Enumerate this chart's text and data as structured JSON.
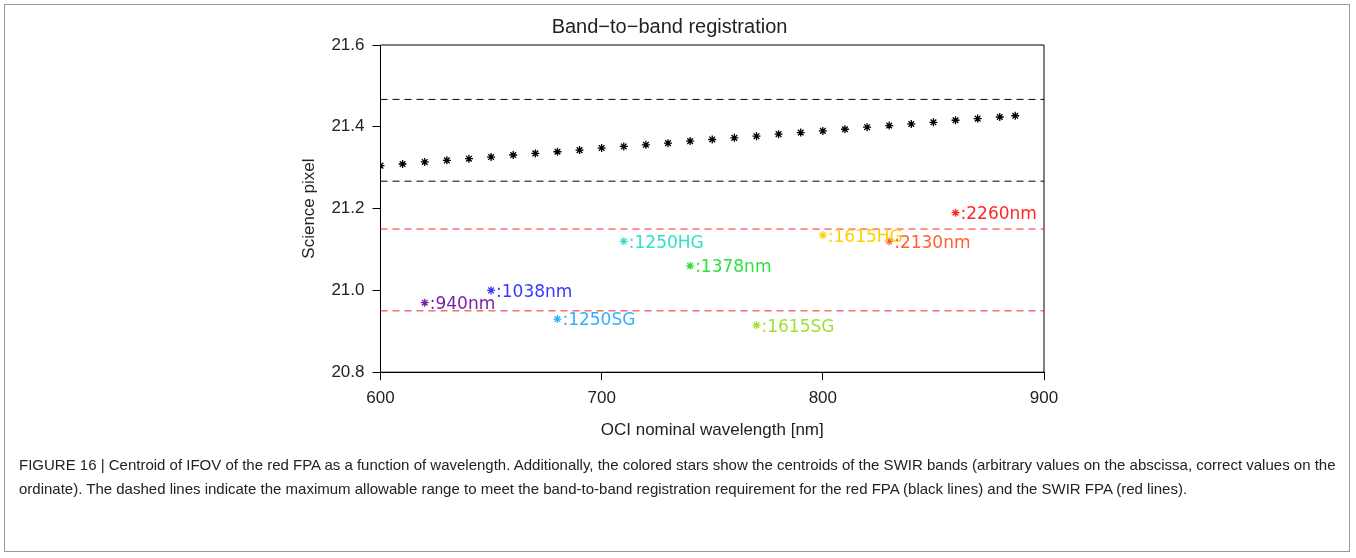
{
  "chart_data": {
    "type": "scatter",
    "title": "Band−to−band registration",
    "xlabel": "OCI nominal wavelength [nm]",
    "ylabel": "Science pixel",
    "xlim": [
      600,
      900
    ],
    "xticks": [
      600,
      700,
      800,
      900
    ],
    "ylim": [
      20.8,
      21.6
    ],
    "yticks": [
      20.8,
      {
        "value": 21,
        "label": "21.0"
      },
      21.2,
      21.4,
      21.6
    ],
    "grid": false,
    "legend": false,
    "marker": "cross",
    "series": [
      {
        "color": "#000000",
        "x": [
          600,
          610,
          620,
          630,
          640,
          650,
          660,
          670,
          680,
          690,
          700,
          710,
          720,
          730,
          740,
          750,
          760,
          770,
          780,
          790,
          800,
          810,
          820,
          830,
          840,
          850,
          860,
          870,
          880,
          887
        ],
        "values": [
          21.305,
          21.309,
          21.314,
          21.318,
          21.322,
          21.326,
          21.331,
          21.335,
          21.339,
          21.343,
          21.348,
          21.352,
          21.356,
          21.36,
          21.365,
          21.369,
          21.373,
          21.377,
          21.382,
          21.386,
          21.39,
          21.394,
          21.399,
          21.403,
          21.407,
          21.411,
          21.416,
          21.42,
          21.424,
          21.427
        ]
      },
      {
        "name": ":940nm",
        "color": "#7a20a8",
        "x": [
          620
        ],
        "values": [
          20.97
        ]
      },
      {
        "name": ":1038nm",
        "color": "#3838ff",
        "x": [
          650
        ],
        "values": [
          21.0
        ]
      },
      {
        "name": ":1250SG",
        "color": "#30b0ff",
        "x": [
          680
        ],
        "values": [
          20.93
        ]
      },
      {
        "name": ":1250HG",
        "color": "#30e0c8",
        "x": [
          710
        ],
        "values": [
          21.12
        ]
      },
      {
        "name": ":1378nm",
        "color": "#30e040",
        "x": [
          740
        ],
        "values": [
          21.06
        ]
      },
      {
        "name": ":1615SG",
        "color": "#a0e030",
        "x": [
          770
        ],
        "values": [
          20.915
        ]
      },
      {
        "name": ":1615HG",
        "color": "#ffd000",
        "x": [
          800
        ],
        "values": [
          21.135
        ]
      },
      {
        "name": ":2130nm",
        "color": "#ff6030",
        "x": [
          830
        ],
        "values": [
          21.12
        ]
      },
      {
        "name": ":2260nm",
        "color": "#ff2828",
        "x": [
          860
        ],
        "values": [
          21.19
        ]
      }
    ],
    "ref_lines": [
      {
        "axis": "y",
        "value": 21.467,
        "color": "#000000",
        "line_style": "dashed"
      },
      {
        "axis": "y",
        "value": 21.267,
        "color": "#000000",
        "line_style": "dashed"
      },
      {
        "axis": "y",
        "value": 21.15,
        "color": "#ff2020",
        "line_style": "dashed"
      },
      {
        "axis": "y",
        "value": 20.95,
        "color": "#ff2020",
        "line_style": "dashed"
      }
    ],
    "annotations": [
      "FIGURE 16 | Centroid of IFOV of the red FPA as a function of wavelength. Additionally, the colored stars show the centroids of the SWIR bands (arbitrary values on the abscissa, correct values on the ordinate). The dashed lines indicate the maximum allowable range to meet the band-to-band registration requirement for the red FPA (black lines) and the SWIR FPA (red lines)."
    ]
  }
}
